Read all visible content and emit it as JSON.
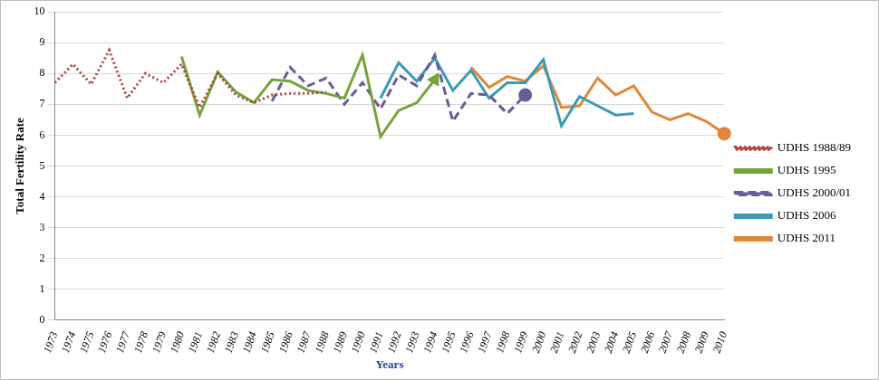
{
  "chart_data": {
    "type": "line",
    "x_label": "Years",
    "y_label": "Total Fertility Rate",
    "categories": [
      "1973",
      "1974",
      "1975",
      "1976",
      "1977",
      "1978",
      "1979",
      "1980",
      "1981",
      "1982",
      "1983",
      "1984",
      "1985",
      "1986",
      "1987",
      "1988",
      "1989",
      "1990",
      "1991",
      "1992",
      "1993",
      "1994",
      "1995",
      "1996",
      "1997",
      "1998",
      "1999",
      "2000",
      "2001",
      "2002",
      "2003",
      "2004",
      "2005",
      "2006",
      "2007",
      "2008",
      "2009",
      "2010"
    ],
    "series": [
      {
        "name": "UDHS 1988/89",
        "color": "#a94442",
        "line_style": "dotted",
        "marker": "none",
        "values": [
          7.7,
          8.3,
          7.65,
          8.75,
          7.2,
          8.0,
          7.7,
          8.3,
          6.9,
          8.0,
          7.3,
          7.05,
          7.3,
          7.35,
          7.35,
          7.4,
          null,
          null,
          null,
          null,
          null,
          null,
          null,
          null,
          null,
          null,
          null,
          null,
          null,
          null,
          null,
          null,
          null,
          null,
          null,
          null,
          null,
          null
        ]
      },
      {
        "name": "UDHS 1995",
        "color": "#77a33c",
        "line_style": "solid",
        "marker": "arrow",
        "values": [
          null,
          null,
          null,
          null,
          null,
          null,
          null,
          8.55,
          6.65,
          8.05,
          7.4,
          7.05,
          7.8,
          7.75,
          7.45,
          7.35,
          7.2,
          8.6,
          5.95,
          6.8,
          7.05,
          7.8,
          null,
          null,
          null,
          null,
          null,
          null,
          null,
          null,
          null,
          null,
          null,
          null,
          null,
          null,
          null,
          null
        ]
      },
      {
        "name": "UDHS 2000/01",
        "color": "#6b5b9a",
        "line_style": "dashed",
        "marker": "circle",
        "values": [
          null,
          null,
          null,
          null,
          null,
          null,
          null,
          null,
          null,
          null,
          null,
          null,
          7.1,
          8.2,
          7.6,
          7.85,
          7.0,
          7.7,
          6.85,
          7.95,
          7.6,
          8.6,
          6.45,
          7.35,
          7.3,
          6.7,
          7.3,
          null,
          null,
          null,
          null,
          null,
          null,
          null,
          null,
          null,
          null,
          null
        ]
      },
      {
        "name": "UDHS 2006",
        "color": "#3a9bb5",
        "line_style": "solid",
        "marker": "none",
        "values": [
          null,
          null,
          null,
          null,
          null,
          null,
          null,
          null,
          null,
          null,
          null,
          null,
          null,
          null,
          null,
          null,
          null,
          null,
          7.2,
          8.35,
          7.75,
          8.5,
          7.45,
          8.1,
          7.2,
          7.7,
          7.7,
          8.45,
          6.3,
          7.25,
          6.95,
          6.65,
          6.7,
          null,
          null,
          null,
          null,
          null
        ]
      },
      {
        "name": "UDHS 2011",
        "color": "#e0873a",
        "line_style": "solid",
        "marker": "circle",
        "values": [
          null,
          null,
          null,
          null,
          null,
          null,
          null,
          null,
          null,
          null,
          null,
          null,
          null,
          null,
          null,
          null,
          null,
          null,
          null,
          null,
          null,
          null,
          null,
          8.2,
          7.55,
          7.9,
          7.75,
          8.25,
          6.9,
          6.95,
          7.85,
          7.3,
          7.6,
          6.75,
          6.5,
          6.7,
          6.45,
          6.05
        ]
      }
    ],
    "ylim": [
      0,
      10
    ],
    "yticks": [
      0,
      1,
      2,
      3,
      4,
      5,
      6,
      7,
      8,
      9,
      10
    ],
    "grid": "y",
    "legend": "right"
  }
}
